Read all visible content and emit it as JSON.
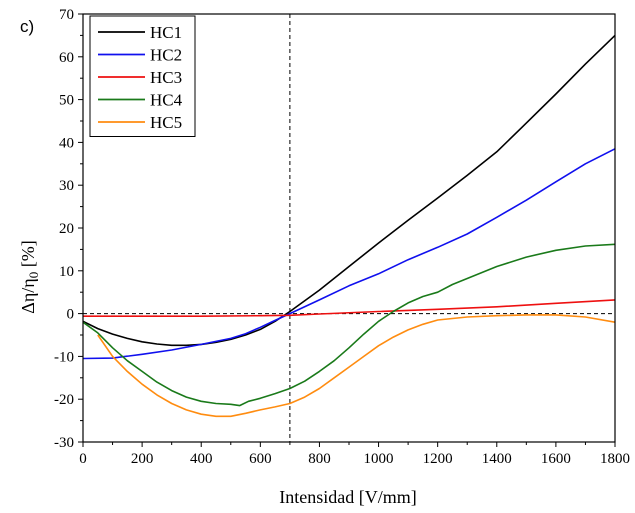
{
  "chart_data": {
    "type": "line",
    "panel_label": "c)",
    "xlabel": "Intensidad [V/mm]",
    "ylabel_main": "Δη/η",
    "ylabel_sub": "0",
    "ylabel_unit": " [%]",
    "xlim": [
      0,
      1800
    ],
    "ylim": [
      -30,
      70
    ],
    "xticks": [
      0,
      200,
      400,
      600,
      800,
      1000,
      1200,
      1400,
      1600,
      1800
    ],
    "yticks": [
      -30,
      -20,
      -10,
      0,
      10,
      20,
      30,
      40,
      50,
      60,
      70
    ],
    "reference_lines": {
      "vertical_x": 700,
      "horizontal_y": 0
    },
    "legend_position": "top-left",
    "grid": false,
    "series": [
      {
        "name": "HC1",
        "color": "#000000",
        "x": [
          0,
          50,
          100,
          150,
          200,
          250,
          300,
          350,
          400,
          450,
          500,
          550,
          600,
          650,
          700,
          800,
          900,
          1000,
          1100,
          1200,
          1300,
          1400,
          1500,
          1600,
          1700,
          1800
        ],
        "y": [
          -1.8,
          -3.5,
          -4.8,
          -5.8,
          -6.6,
          -7.1,
          -7.4,
          -7.4,
          -7.2,
          -6.7,
          -6.0,
          -5.0,
          -3.7,
          -1.8,
          0.5,
          5.5,
          11.0,
          16.5,
          21.8,
          27.0,
          32.3,
          37.8,
          44.5,
          51.3,
          58.3,
          65.0
        ]
      },
      {
        "name": "HC2",
        "color": "#1010ee",
        "x": [
          0,
          100,
          200,
          300,
          400,
          500,
          550,
          600,
          650,
          700,
          800,
          900,
          1000,
          1100,
          1200,
          1300,
          1400,
          1500,
          1600,
          1700,
          1800
        ],
        "y": [
          -10.5,
          -10.4,
          -9.5,
          -8.5,
          -7.2,
          -5.8,
          -4.7,
          -3.2,
          -1.6,
          0.0,
          3.2,
          6.5,
          9.3,
          12.6,
          15.5,
          18.6,
          22.5,
          26.5,
          30.8,
          35.0,
          38.5
        ]
      },
      {
        "name": "HC3",
        "color": "#ee1010",
        "x": [
          0,
          200,
          400,
          600,
          700,
          800,
          1000,
          1200,
          1400,
          1600,
          1800
        ],
        "y": [
          -0.6,
          -0.6,
          -0.6,
          -0.5,
          -0.4,
          -0.1,
          0.5,
          1.0,
          1.6,
          2.4,
          3.2
        ]
      },
      {
        "name": "HC4",
        "color": "#1a7a1a",
        "x": [
          0,
          50,
          100,
          150,
          200,
          250,
          300,
          350,
          400,
          450,
          500,
          530,
          560,
          600,
          650,
          700,
          750,
          800,
          850,
          900,
          950,
          1000,
          1050,
          1100,
          1150,
          1200,
          1250,
          1300,
          1400,
          1500,
          1600,
          1700,
          1800
        ],
        "y": [
          -2.0,
          -4.5,
          -8.0,
          -11.0,
          -13.5,
          -16.0,
          -18.0,
          -19.5,
          -20.5,
          -21.0,
          -21.2,
          -21.5,
          -20.5,
          -19.8,
          -18.7,
          -17.5,
          -15.8,
          -13.5,
          -11.0,
          -8.0,
          -4.8,
          -1.8,
          0.5,
          2.5,
          4.0,
          5.0,
          6.8,
          8.2,
          11.0,
          13.2,
          14.8,
          15.8,
          16.2
        ]
      },
      {
        "name": "HC5",
        "color": "#ff8c10",
        "x": [
          50,
          100,
          150,
          200,
          250,
          300,
          350,
          400,
          450,
          500,
          550,
          600,
          650,
          700,
          750,
          800,
          850,
          900,
          950,
          1000,
          1050,
          1100,
          1150,
          1200,
          1300,
          1400,
          1500,
          1600,
          1700,
          1800
        ],
        "y": [
          -5.0,
          -10.0,
          -13.5,
          -16.5,
          -19.0,
          -21.0,
          -22.5,
          -23.5,
          -24.0,
          -24.0,
          -23.3,
          -22.5,
          -21.8,
          -21.0,
          -19.5,
          -17.5,
          -15.0,
          -12.5,
          -10.0,
          -7.5,
          -5.5,
          -3.8,
          -2.5,
          -1.5,
          -0.8,
          -0.5,
          -0.3,
          -0.3,
          -0.8,
          -2.0
        ]
      }
    ]
  }
}
